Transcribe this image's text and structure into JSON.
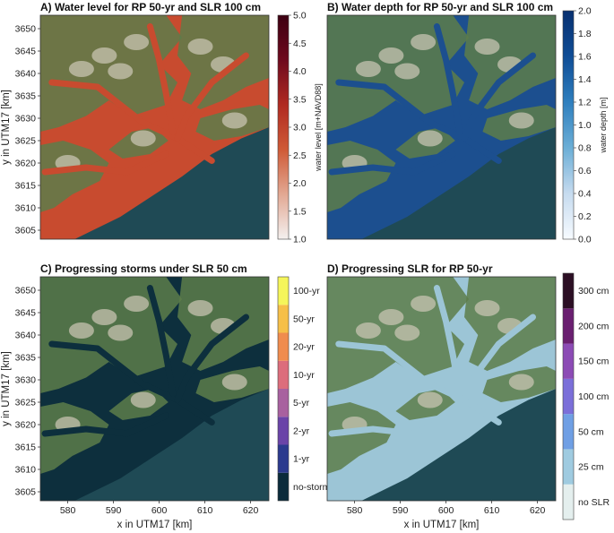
{
  "chart_data": [
    {
      "type": "heatmap",
      "title": "A) Water level for RP 50-yr and SLR 100 cm",
      "xlabel": "",
      "ylabel": "y in UTM17 [km]",
      "xlim": [
        574,
        624
      ],
      "ylim": [
        3603,
        3653
      ],
      "x_ticks": [],
      "y_ticks": [
        "3605",
        "3610",
        "3615",
        "3620",
        "3625",
        "3630",
        "3635",
        "3640",
        "3645",
        "3650"
      ],
      "colorbar": {
        "label": "water level [m+NAVD88]",
        "range": [
          1.0,
          5.0
        ],
        "ticks": [
          "1.0",
          "1.5",
          "2.0",
          "2.5",
          "3.0",
          "3.5",
          "4.0",
          "4.5",
          "5.0"
        ],
        "colors": [
          "#f4f0ef",
          "#e2a893",
          "#cf5a36",
          "#b02a21",
          "#6e0a1e",
          "#3c0012"
        ]
      },
      "fill_color": "#c84b2f"
    },
    {
      "type": "heatmap",
      "title": "B) Water depth for RP 50-yr and SLR 100 cm",
      "xlabel": "",
      "ylabel": "",
      "xlim": [
        574,
        624
      ],
      "ylim": [
        3603,
        3653
      ],
      "x_ticks": [],
      "y_ticks": [],
      "colorbar": {
        "label": "water depth [m]",
        "range": [
          0.0,
          2.0
        ],
        "ticks": [
          "0.0",
          "0.2",
          "0.4",
          "0.6",
          "0.8",
          "1.0",
          "1.2",
          "1.4",
          "1.6",
          "1.8",
          "2.0"
        ],
        "colors": [
          "#f7fbff",
          "#c6dbef",
          "#6baed6",
          "#2f7fbe",
          "#0f4d96",
          "#083070"
        ]
      },
      "fill_color": "#1c4f8f"
    },
    {
      "type": "heatmap",
      "title": "C) Progressing storms under SLR 50 cm",
      "xlabel": "x in UTM17 [km]",
      "ylabel": "y in UTM17 [km]",
      "xlim": [
        574,
        624
      ],
      "ylim": [
        3603,
        3653
      ],
      "x_ticks": [
        "580",
        "590",
        "600",
        "610",
        "620"
      ],
      "y_ticks": [
        "3605",
        "3610",
        "3615",
        "3620",
        "3625",
        "3630",
        "3635",
        "3640",
        "3645",
        "3650"
      ],
      "colorbar": {
        "categories": [
          "no-storm",
          "1-yr",
          "2-yr",
          "5-yr",
          "10-yr",
          "20-yr",
          "50-yr",
          "100-yr"
        ],
        "colors": [
          "#0b2b3b",
          "#2b3a8e",
          "#6a44a8",
          "#a8619f",
          "#dc6d7c",
          "#f08c4e",
          "#f6bf48",
          "#f5f55a"
        ]
      },
      "fill_color": "#0d2f3d"
    },
    {
      "type": "heatmap",
      "title": "D) Progressing SLR for RP 50-yr",
      "xlabel": "x in UTM17 [km]",
      "ylabel": "",
      "xlim": [
        574,
        624
      ],
      "ylim": [
        3603,
        3653
      ],
      "x_ticks": [
        "580",
        "590",
        "600",
        "610",
        "620"
      ],
      "y_ticks": [],
      "colorbar": {
        "categories": [
          "no SLR",
          "25 cm",
          "50 cm",
          "100 cm",
          "150 cm",
          "200 cm",
          "300 cm"
        ],
        "colors": [
          "#e4efee",
          "#9fcbe0",
          "#6f9fe4",
          "#7b6fd9",
          "#8c4bb5",
          "#6a1f70",
          "#2c0f24"
        ]
      },
      "fill_color": "#9cc5d6"
    }
  ]
}
